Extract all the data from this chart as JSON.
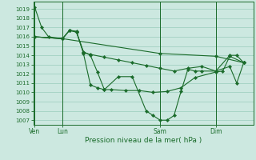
{
  "bg_color": "#cce8e0",
  "grid_color": "#99ccbb",
  "line_color": "#1a6b2a",
  "xlabel": "Pression niveau de la mer( hPa )",
  "ylim": [
    1006.5,
    1019.8
  ],
  "yticks": [
    1007,
    1008,
    1009,
    1010,
    1011,
    1012,
    1013,
    1014,
    1015,
    1016,
    1017,
    1018,
    1019
  ],
  "xtick_labels": [
    "Ven",
    "Lun",
    "Sam",
    "Dim"
  ],
  "xtick_positions": [
    0,
    2,
    9,
    13
  ],
  "xlim": [
    -0.1,
    15.7
  ],
  "series": [
    {
      "x": [
        0,
        0.5,
        1.0,
        2.0,
        2.5,
        3.0,
        3.5,
        4.0,
        4.5,
        5.0,
        6.0,
        7.0,
        8.0,
        8.5,
        9.0,
        9.5,
        10.0,
        10.5,
        11.0,
        11.5,
        12.0,
        13.0,
        14.0,
        14.5,
        15.0
      ],
      "y": [
        1019.2,
        1017.0,
        1016.0,
        1015.8,
        1016.7,
        1016.6,
        1014.2,
        1010.8,
        1010.5,
        1010.3,
        1011.7,
        1011.7,
        1008.0,
        1007.5,
        1007.0,
        1007.0,
        1007.5,
        1010.1,
        1012.5,
        1012.3,
        1012.3,
        1012.3,
        1012.8,
        1011.0,
        1013.2
      ]
    },
    {
      "x": [
        0,
        2.0,
        9.0,
        13.0,
        15.0
      ],
      "y": [
        1016.0,
        1015.8,
        1014.2,
        1013.9,
        1013.2
      ]
    },
    {
      "x": [
        0,
        2.0,
        2.5,
        3.0,
        3.5,
        4.0,
        5.0,
        6.0,
        7.0,
        8.0,
        9.0,
        10.0,
        11.0,
        12.0,
        13.0,
        14.0,
        14.5,
        15.0
      ],
      "y": [
        1016.0,
        1015.8,
        1016.7,
        1016.5,
        1014.3,
        1014.1,
        1013.8,
        1013.5,
        1013.2,
        1012.9,
        1012.6,
        1012.3,
        1012.6,
        1012.8,
        1012.3,
        1014.0,
        1014.0,
        1013.2
      ]
    },
    {
      "x": [
        0,
        2.0,
        2.5,
        3.0,
        3.5,
        4.0,
        4.5,
        5.0,
        5.5,
        6.5,
        7.5,
        8.5,
        9.5,
        10.5,
        11.5,
        13.0,
        13.5,
        14.0,
        15.0
      ],
      "y": [
        1016.0,
        1015.8,
        1016.7,
        1016.5,
        1014.4,
        1014.0,
        1012.2,
        1010.3,
        1010.3,
        1010.2,
        1010.2,
        1010.0,
        1010.1,
        1010.5,
        1011.6,
        1012.2,
        1012.3,
        1013.9,
        1013.2
      ]
    }
  ]
}
